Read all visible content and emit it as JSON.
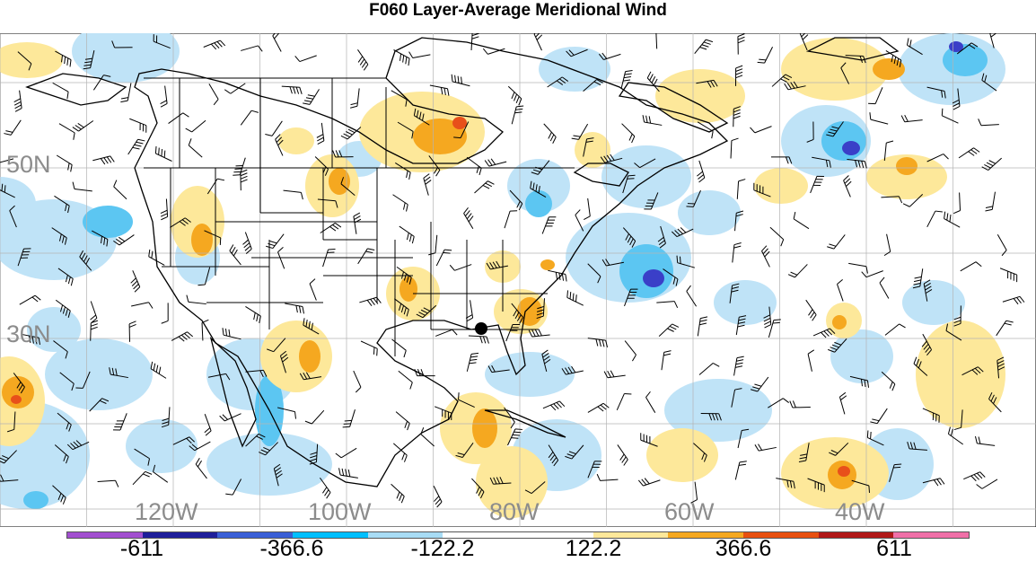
{
  "title": "F060 Layer-Average Meridional Wind",
  "map": {
    "latitude_labels": [
      "50N",
      "30N"
    ],
    "longitude_labels": [
      "120W",
      "100W",
      "80W",
      "60W",
      "40W"
    ],
    "marker_icon": "location-dot-icon",
    "features": [
      "filled-contours",
      "wind-barbs",
      "coastlines",
      "state-borders",
      "lat-lon-grid"
    ]
  },
  "colorbar": {
    "colors": [
      "#a24fd0",
      "#1e1e9a",
      "#3a5fd6",
      "#00bfff",
      "#a8dcf5",
      "#ffffff",
      "#ffffff",
      "#fde89a",
      "#f5a820",
      "#e85010",
      "#b01818",
      "#f070a8"
    ],
    "labels": [
      "-611",
      "-366.6",
      "-122.2",
      "122.2",
      "366.6",
      "611"
    ]
  },
  "palette": {
    "light_blue": "#bfe3f7",
    "mid_blue": "#5cc6f2",
    "deep_blue": "#3a3fc8",
    "light_yellow": "#fde89a",
    "orange": "#f5a820",
    "red_orange": "#e8501a",
    "grid": "#b4b4b4",
    "border": "#000000"
  }
}
